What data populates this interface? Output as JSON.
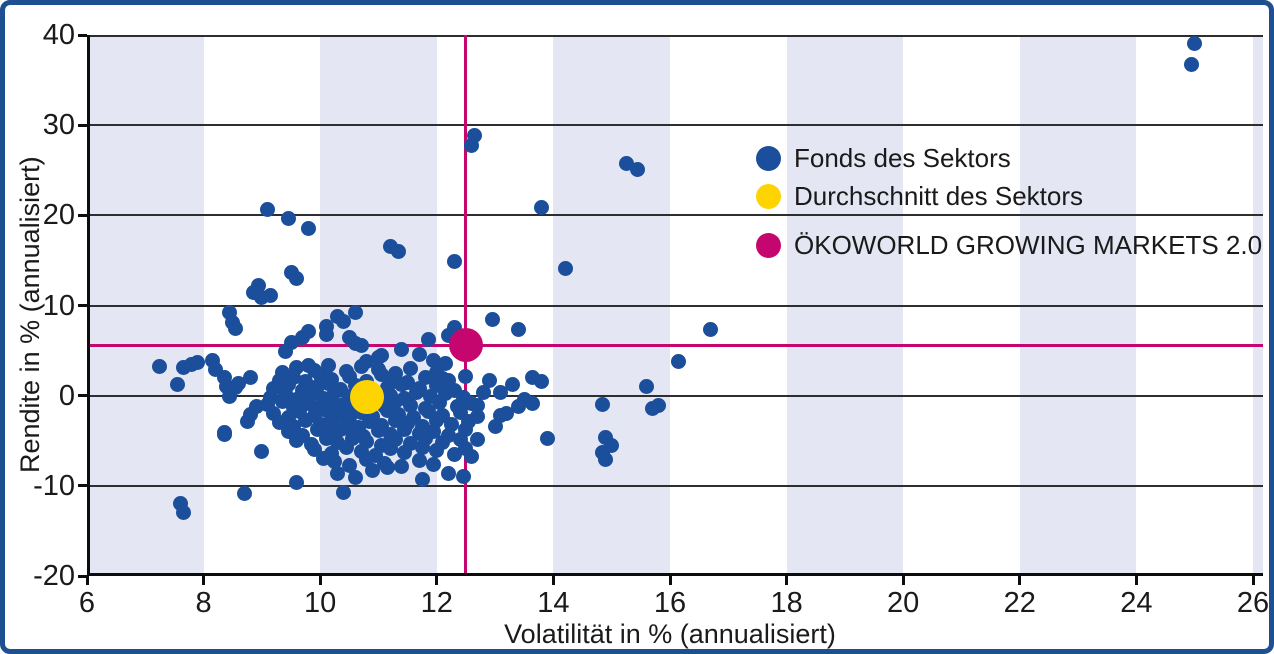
{
  "frame": {
    "border_color": "#1d4f91",
    "background": "#ffffff"
  },
  "colors": {
    "fund_blue": "#1b4e9b",
    "average_yellow": "#fdd400",
    "okoworld_magenta": "#c6066f",
    "band": "#e4e7f3",
    "gridline": "#2e2e2e",
    "axis": "#0d0d0d",
    "text": "#1a1a1a"
  },
  "chart_data": {
    "type": "scatter",
    "title": "",
    "xlabel": "Volatilität in % (annualisiert)",
    "ylabel": "Rendite in % (annualisiert)",
    "xlim": [
      6,
      26.17
    ],
    "ylim": [
      -20,
      40
    ],
    "x_ticks": [
      6,
      8,
      10,
      12,
      14,
      16,
      18,
      20,
      22,
      24,
      26
    ],
    "y_ticks": [
      -20,
      -10,
      0,
      10,
      20,
      30,
      40
    ],
    "gridlines_y": [
      -10,
      0,
      10,
      20,
      30
    ],
    "grid": "horizontal-only",
    "shaded_bands_x": [
      [
        6,
        8
      ],
      [
        10,
        12
      ],
      [
        14,
        16
      ],
      [
        18,
        20
      ],
      [
        22,
        24
      ],
      [
        26,
        26.17
      ]
    ],
    "legend_position": "upper-right-inside",
    "crosshair": {
      "x": 12.5,
      "y": 5.6
    },
    "series": [
      {
        "name": "Fonds des Sektors",
        "color": "#1b4e9b",
        "marker_diameter": 15,
        "points": [
          [
            25.0,
            39.1
          ],
          [
            24.95,
            36.7
          ],
          [
            12.65,
            28.8
          ],
          [
            12.6,
            27.8
          ],
          [
            15.25,
            25.7
          ],
          [
            15.45,
            25.1
          ],
          [
            13.8,
            20.9
          ],
          [
            9.1,
            20.7
          ],
          [
            9.45,
            19.6
          ],
          [
            9.8,
            18.5
          ],
          [
            11.2,
            16.5
          ],
          [
            11.35,
            16.0
          ],
          [
            12.3,
            14.9
          ],
          [
            14.2,
            14.1
          ],
          [
            9.5,
            13.7
          ],
          [
            9.6,
            13.0
          ],
          [
            8.95,
            12.2
          ],
          [
            8.85,
            11.4
          ],
          [
            9.0,
            10.9
          ],
          [
            9.15,
            11.1
          ],
          [
            8.45,
            9.2
          ],
          [
            8.5,
            8.1
          ],
          [
            8.55,
            7.5
          ],
          [
            10.3,
            8.8
          ],
          [
            10.4,
            8.2
          ],
          [
            10.6,
            9.2
          ],
          [
            10.1,
            7.7
          ],
          [
            10.1,
            6.8
          ],
          [
            9.7,
            6.5
          ],
          [
            9.8,
            7.1
          ],
          [
            9.5,
            5.9
          ],
          [
            9.4,
            4.9
          ],
          [
            10.5,
            6.4
          ],
          [
            10.6,
            5.8
          ],
          [
            10.7,
            5.6
          ],
          [
            10.8,
            3.8
          ],
          [
            11.0,
            4.2
          ],
          [
            11.05,
            4.5
          ],
          [
            11.4,
            5.1
          ],
          [
            12.95,
            8.5
          ],
          [
            13.4,
            7.3
          ],
          [
            12.3,
            7.6
          ],
          [
            11.85,
            6.2
          ],
          [
            12.2,
            6.7
          ],
          [
            11.7,
            4.6
          ],
          [
            11.95,
            3.9
          ],
          [
            12.15,
            3.6
          ],
          [
            16.7,
            7.3
          ],
          [
            16.15,
            3.8
          ],
          [
            15.6,
            1.0
          ],
          [
            15.8,
            -1.1
          ],
          [
            15.7,
            -1.4
          ],
          [
            14.85,
            -1.0
          ],
          [
            14.9,
            -4.6
          ],
          [
            15.0,
            -5.5
          ],
          [
            14.85,
            -6.3
          ],
          [
            14.9,
            -7.1
          ],
          [
            13.9,
            -4.7
          ],
          [
            13.65,
            2.0
          ],
          [
            13.8,
            1.6
          ],
          [
            13.3,
            1.2
          ],
          [
            13.5,
            -0.4
          ],
          [
            13.65,
            -0.9
          ],
          [
            12.9,
            1.7
          ],
          [
            13.1,
            0.3
          ],
          [
            12.8,
            0.4
          ],
          [
            12.1,
            1.9
          ],
          [
            12.5,
            2.1
          ],
          [
            12.7,
            -1.1
          ],
          [
            13.1,
            -2.2
          ],
          [
            13.4,
            -1.2
          ],
          [
            13.0,
            -3.4
          ],
          [
            13.2,
            -2.0
          ],
          [
            7.25,
            3.2
          ],
          [
            7.55,
            1.2
          ],
          [
            7.65,
            3.1
          ],
          [
            7.8,
            3.5
          ],
          [
            7.9,
            3.7
          ],
          [
            8.15,
            3.9
          ],
          [
            8.2,
            2.9
          ],
          [
            8.35,
            2.0
          ],
          [
            8.4,
            1.0
          ],
          [
            8.45,
            -0.1
          ],
          [
            8.55,
            0.9
          ],
          [
            8.6,
            1.4
          ],
          [
            8.8,
            2.0
          ],
          [
            8.8,
            -2.1
          ],
          [
            8.75,
            -2.9
          ],
          [
            8.35,
            -4.1
          ],
          [
            8.9,
            -1.2
          ],
          [
            8.35,
            -4.3
          ],
          [
            7.6,
            -12.0
          ],
          [
            7.65,
            -13.0
          ],
          [
            8.7,
            -10.9
          ],
          [
            9.0,
            -6.2
          ],
          [
            9.6,
            -9.6
          ],
          [
            10.4,
            -10.7
          ],
          [
            10.3,
            -8.6
          ],
          [
            10.6,
            -9.1
          ],
          [
            12.2,
            -8.6
          ],
          [
            12.45,
            -9.0
          ],
          [
            11.75,
            -9.3
          ],
          [
            12.5,
            -5.9
          ],
          [
            12.6,
            -6.8
          ],
          [
            12.7,
            -4.9
          ],
          [
            9.35,
            2.6
          ],
          [
            9.6,
            3.1
          ],
          [
            9.9,
            2.8
          ],
          [
            10.15,
            3.3
          ],
          [
            10.45,
            2.7
          ],
          [
            10.7,
            3.2
          ],
          [
            11.0,
            2.9
          ],
          [
            11.3,
            2.5
          ],
          [
            11.55,
            3.0
          ],
          [
            12.0,
            2.6
          ],
          [
            9.8,
            3.4
          ],
          [
            9.3,
            1.7
          ],
          [
            9.55,
            2.0
          ],
          [
            9.75,
            1.6
          ],
          [
            10.0,
            2.2
          ],
          [
            10.2,
            1.8
          ],
          [
            10.5,
            2.1
          ],
          [
            10.8,
            1.6
          ],
          [
            11.05,
            2.3
          ],
          [
            11.25,
            1.9
          ],
          [
            11.5,
            1.5
          ],
          [
            11.8,
            2.0
          ],
          [
            12.2,
            1.7
          ],
          [
            9.2,
            0.8
          ],
          [
            9.45,
            1.2
          ],
          [
            9.7,
            0.6
          ],
          [
            9.95,
            1.0
          ],
          [
            10.15,
            1.3
          ],
          [
            10.35,
            0.7
          ],
          [
            10.6,
            1.1
          ],
          [
            10.9,
            0.5
          ],
          [
            11.15,
            0.9
          ],
          [
            11.4,
            1.2
          ],
          [
            11.7,
            0.8
          ],
          [
            12.0,
            1.1
          ],
          [
            12.3,
            0.6
          ],
          [
            9.15,
            -0.2
          ],
          [
            9.4,
            0.2
          ],
          [
            9.6,
            -0.4
          ],
          [
            9.85,
            0.1
          ],
          [
            10.05,
            -0.3
          ],
          [
            10.25,
            0.3
          ],
          [
            10.5,
            -0.1
          ],
          [
            10.7,
            0.2
          ],
          [
            10.95,
            -0.4
          ],
          [
            11.2,
            0.0
          ],
          [
            11.45,
            -0.3
          ],
          [
            11.65,
            0.3
          ],
          [
            11.9,
            -0.1
          ],
          [
            12.15,
            0.2
          ],
          [
            12.45,
            -0.2
          ],
          [
            9.1,
            -1.0
          ],
          [
            9.35,
            -0.7
          ],
          [
            9.55,
            -1.3
          ],
          [
            9.8,
            -0.9
          ],
          [
            10.0,
            -1.2
          ],
          [
            10.2,
            -0.6
          ],
          [
            10.4,
            -1.0
          ],
          [
            10.6,
            -1.4
          ],
          [
            10.85,
            -0.8
          ],
          [
            11.1,
            -1.2
          ],
          [
            11.3,
            -0.7
          ],
          [
            11.55,
            -1.1
          ],
          [
            11.8,
            -1.4
          ],
          [
            12.05,
            -0.8
          ],
          [
            12.35,
            -1.2
          ],
          [
            12.6,
            -0.9
          ],
          [
            9.2,
            -2.0
          ],
          [
            9.45,
            -2.4
          ],
          [
            9.65,
            -1.8
          ],
          [
            9.9,
            -2.2
          ],
          [
            10.1,
            -1.7
          ],
          [
            10.3,
            -2.1
          ],
          [
            10.5,
            -2.4
          ],
          [
            10.7,
            -1.9
          ],
          [
            10.9,
            -2.3
          ],
          [
            11.15,
            -1.7
          ],
          [
            11.35,
            -2.1
          ],
          [
            11.6,
            -2.4
          ],
          [
            11.85,
            -1.8
          ],
          [
            12.1,
            -2.2
          ],
          [
            12.4,
            -1.9
          ],
          [
            12.7,
            -2.3
          ],
          [
            9.3,
            -3.0
          ],
          [
            9.55,
            -3.4
          ],
          [
            9.75,
            -2.8
          ],
          [
            10.0,
            -3.2
          ],
          [
            10.2,
            -2.7
          ],
          [
            10.45,
            -3.1
          ],
          [
            10.65,
            -3.5
          ],
          [
            10.85,
            -2.9
          ],
          [
            11.05,
            -3.3
          ],
          [
            11.3,
            -2.7
          ],
          [
            11.5,
            -3.1
          ],
          [
            11.75,
            -3.4
          ],
          [
            12.0,
            -2.8
          ],
          [
            12.25,
            -3.2
          ],
          [
            12.55,
            -2.9
          ],
          [
            9.45,
            -4.0
          ],
          [
            9.7,
            -4.4
          ],
          [
            9.95,
            -3.8
          ],
          [
            10.15,
            -4.2
          ],
          [
            10.35,
            -3.7
          ],
          [
            10.55,
            -4.1
          ],
          [
            10.75,
            -4.5
          ],
          [
            11.0,
            -3.9
          ],
          [
            11.2,
            -4.3
          ],
          [
            11.45,
            -3.8
          ],
          [
            11.7,
            -4.2
          ],
          [
            11.95,
            -4.0
          ],
          [
            12.2,
            -4.4
          ],
          [
            12.5,
            -3.8
          ],
          [
            9.6,
            -5.0
          ],
          [
            9.85,
            -5.4
          ],
          [
            10.1,
            -4.8
          ],
          [
            10.3,
            -5.2
          ],
          [
            10.55,
            -4.7
          ],
          [
            10.8,
            -5.1
          ],
          [
            11.05,
            -5.5
          ],
          [
            11.3,
            -4.9
          ],
          [
            11.55,
            -5.3
          ],
          [
            11.8,
            -4.8
          ],
          [
            12.1,
            -5.2
          ],
          [
            12.4,
            -4.9
          ],
          [
            9.9,
            -6.0
          ],
          [
            10.2,
            -6.4
          ],
          [
            10.45,
            -5.8
          ],
          [
            10.7,
            -6.2
          ],
          [
            10.95,
            -6.6
          ],
          [
            11.2,
            -5.9
          ],
          [
            11.45,
            -6.3
          ],
          [
            11.75,
            -5.8
          ],
          [
            12.0,
            -6.1
          ],
          [
            12.3,
            -6.5
          ],
          [
            10.25,
            -7.3
          ],
          [
            10.5,
            -7.8
          ],
          [
            10.8,
            -7.1
          ],
          [
            11.1,
            -7.5
          ],
          [
            11.4,
            -7.9
          ],
          [
            11.7,
            -7.2
          ],
          [
            10.9,
            -8.3
          ],
          [
            11.15,
            -8.0
          ],
          [
            10.05,
            -7.0
          ],
          [
            11.95,
            -7.6
          ]
        ]
      },
      {
        "name": "Durchschnitt des Sektors",
        "color": "#fdd400",
        "marker_diameter": 34,
        "points": [
          [
            10.8,
            -0.1
          ]
        ]
      },
      {
        "name": "ÖKOWORLD GROWING MARKETS 2.0",
        "color": "#c6066f",
        "marker_diameter": 34,
        "points": [
          [
            12.5,
            5.6
          ]
        ]
      }
    ]
  }
}
